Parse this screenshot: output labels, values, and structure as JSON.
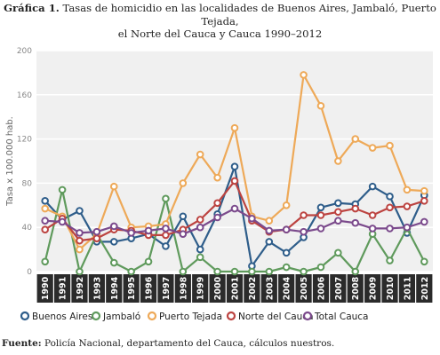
{
  "figure": {
    "label": "Gráfica 1.",
    "title_line1": "Tasas de homicidio en las localidades de Buenos Aires, Jambaló, Puerto Tejada,",
    "title_line2": "el Norte del Cauca y Cauca 1990–2012",
    "source_label": "Fuente:",
    "source_text": "Policía Nacional, departamento del Cauca, cálculos nuestros."
  },
  "chart_data": {
    "type": "line",
    "ylabel": "Tasa x 100.000 hab.",
    "xlabel": "",
    "ylim": [
      0,
      200
    ],
    "yticks": [
      0,
      40,
      80,
      120,
      160,
      200
    ],
    "grid": true,
    "legend_position": "bottom",
    "categories": [
      "1990",
      "1991",
      "1992",
      "1993",
      "1994",
      "1995",
      "1996",
      "1997",
      "1998",
      "1999",
      "2000",
      "2001",
      "2002",
      "2003",
      "2004",
      "2005",
      "2006",
      "2007",
      "2008",
      "2009",
      "2010",
      "2011",
      "2012"
    ],
    "series": [
      {
        "name": "Buenos Aires",
        "color": "#2e5d8a",
        "values": [
          64,
          47,
          55,
          27,
          27,
          30,
          34,
          23,
          50,
          20,
          52,
          95,
          5,
          27,
          17,
          31,
          58,
          62,
          61,
          77,
          68,
          35,
          69
        ]
      },
      {
        "name": "Jambaló",
        "color": "#5f9a5c",
        "values": [
          9,
          74,
          0,
          34,
          8,
          0,
          9,
          66,
          0,
          13,
          0,
          0,
          0,
          0,
          4,
          0,
          4,
          17,
          0,
          34,
          10,
          39,
          9
        ]
      },
      {
        "name": "Puerto Tejada",
        "color": "#eea958",
        "values": [
          57,
          50,
          20,
          34,
          77,
          40,
          41,
          43,
          80,
          106,
          85,
          130,
          50,
          46,
          60,
          178,
          150,
          100,
          120,
          112,
          114,
          74,
          73
        ]
      },
      {
        "name": "Norte del Cauca",
        "color": "#bc4340",
        "values": [
          38,
          48,
          28,
          30,
          38,
          37,
          33,
          33,
          38,
          47,
          62,
          82,
          46,
          36,
          38,
          51,
          51,
          54,
          57,
          51,
          58,
          59,
          64
        ]
      },
      {
        "name": "Total Cauca",
        "color": "#7b4a8c",
        "values": [
          46,
          45,
          35,
          36,
          41,
          35,
          37,
          39,
          34,
          40,
          49,
          57,
          48,
          37,
          38,
          36,
          39,
          46,
          44,
          39,
          39,
          40,
          45
        ]
      }
    ]
  }
}
